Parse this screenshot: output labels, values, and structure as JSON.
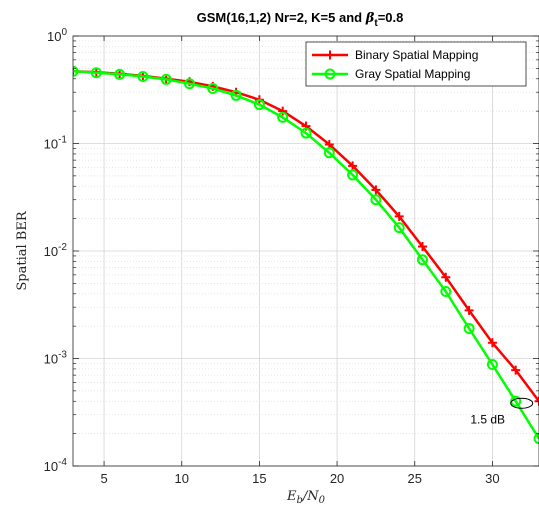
{
  "chart_data": {
    "type": "line",
    "title": "GSM(16,1,2) Nr=2,  K=5 and β_t=0.8",
    "title_parts": {
      "prefix": "GSM(16,1,2) Nr=2,  K=5 and ",
      "beta": "β",
      "beta_sub": "t",
      "suffix": "=0.8"
    },
    "xlabel": "E_b/N_0",
    "xlabel_parts": {
      "a": "E",
      "a_sub": "b",
      "slash": "/",
      "b": "N",
      "b_sub": "0"
    },
    "ylabel": "Spatial BER",
    "xlim": [
      3,
      33
    ],
    "ylim": [
      0.0001,
      1
    ],
    "y_scale": "log",
    "grid": true,
    "legend_position": "top-right",
    "x_ticks": [
      5,
      10,
      15,
      20,
      25,
      30
    ],
    "y_ticks": [
      {
        "value": 1,
        "base": "10",
        "exp": "0"
      },
      {
        "value": 0.1,
        "base": "10",
        "exp": "-1"
      },
      {
        "value": 0.01,
        "base": "10",
        "exp": "-2"
      },
      {
        "value": 0.001,
        "base": "10",
        "exp": "-3"
      },
      {
        "value": 0.0001,
        "base": "10",
        "exp": "-4"
      }
    ],
    "x": [
      3,
      4.5,
      6,
      7.5,
      9,
      10.5,
      12,
      13.5,
      15,
      16.5,
      18,
      19.5,
      21,
      22.5,
      24,
      25.5,
      27,
      28.5,
      30,
      31.5,
      33
    ],
    "series": [
      {
        "name": "Binary Spatial Mapping",
        "color": "#ff0000",
        "marker": "plus",
        "values": [
          0.47,
          0.46,
          0.445,
          0.425,
          0.4,
          0.375,
          0.34,
          0.3,
          0.255,
          0.2,
          0.145,
          0.098,
          0.062,
          0.037,
          0.021,
          0.011,
          0.0057,
          0.0028,
          0.0014,
          0.00078,
          0.0004
        ]
      },
      {
        "name": "Gray Spatial Mapping",
        "color": "#00ff00",
        "marker": "circle",
        "values": [
          0.47,
          0.455,
          0.44,
          0.42,
          0.395,
          0.36,
          0.325,
          0.28,
          0.23,
          0.175,
          0.125,
          0.082,
          0.051,
          0.03,
          0.0165,
          0.0083,
          0.0042,
          0.0019,
          0.00088,
          0.0004,
          0.00018
        ]
      }
    ],
    "annotation": {
      "text": "1.5 dB",
      "x": 31.5,
      "y": 0.0004
    }
  }
}
